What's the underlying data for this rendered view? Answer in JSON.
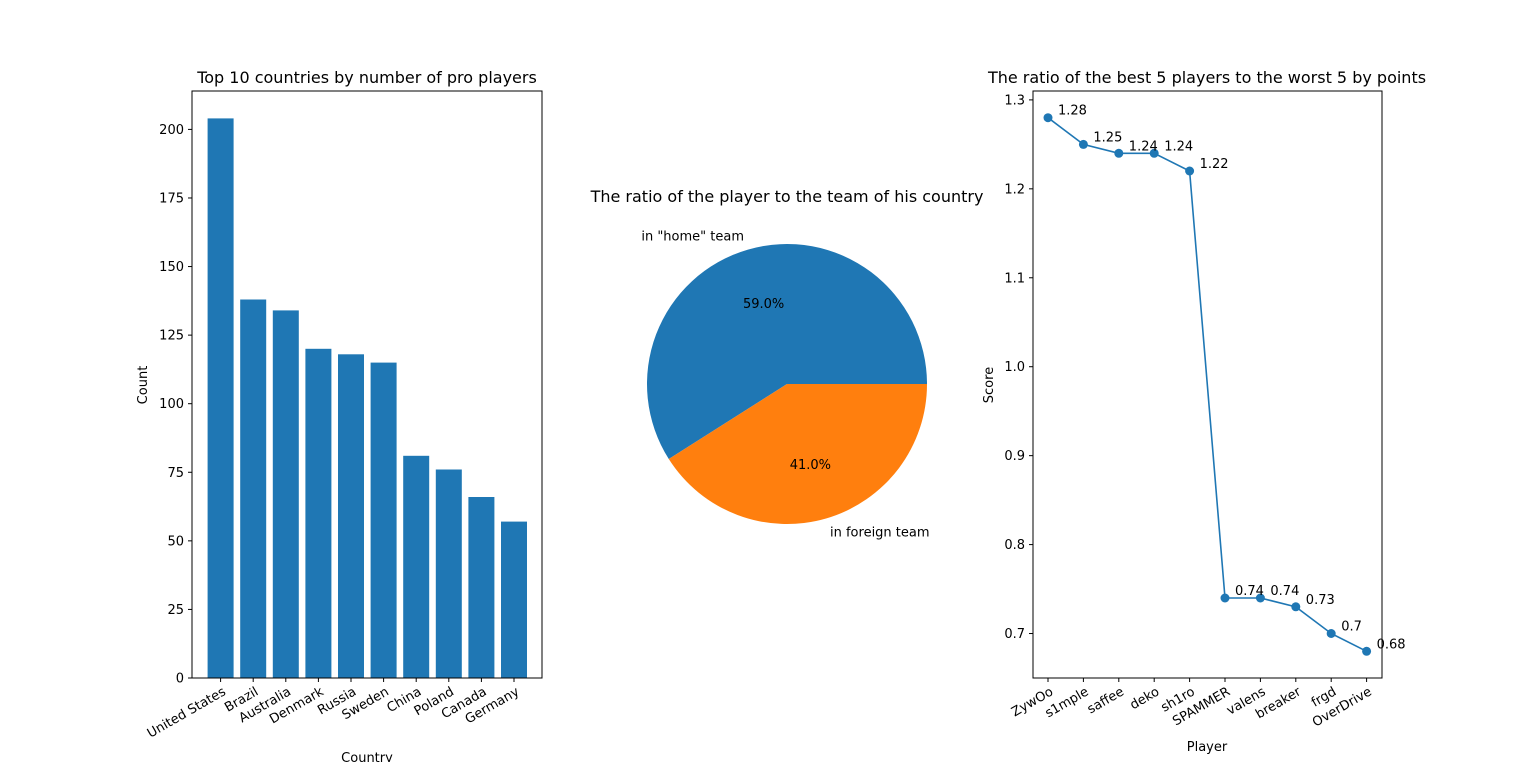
{
  "chart_data": [
    {
      "type": "bar",
      "title": "Top 10 countries by number of pro players",
      "xlabel": "Country",
      "ylabel": "Count",
      "categories": [
        "United States",
        "Brazil",
        "Australia",
        "Denmark",
        "Russia",
        "Sweden",
        "China",
        "Poland",
        "Canada",
        "Germany"
      ],
      "values": [
        204,
        138,
        134,
        120,
        118,
        115,
        81,
        76,
        66,
        57
      ],
      "ylim": [
        0,
        214
      ],
      "yticks": [
        0,
        25,
        50,
        75,
        100,
        125,
        150,
        175,
        200
      ],
      "color": "#1f77b4",
      "grid": false
    },
    {
      "type": "pie",
      "title": "The ratio of the player to the team of his country",
      "labels": [
        "in \"home\" team",
        "in foreign team"
      ],
      "values": [
        59.0,
        41.0
      ],
      "autopct": [
        "59.0%",
        "41.0%"
      ],
      "colors": [
        "#1f77b4",
        "#ff7f0e"
      ]
    },
    {
      "type": "line",
      "title": "The ratio of the best 5 players to the worst 5 by points",
      "xlabel": "Player",
      "ylabel": "Score",
      "categories": [
        "ZywOo",
        "s1mple",
        "saffee",
        "deko",
        "sh1ro",
        "SPAMMER",
        "valens",
        "breaker",
        "frgd",
        "OverDrive"
      ],
      "values": [
        1.28,
        1.25,
        1.24,
        1.24,
        1.22,
        0.74,
        0.74,
        0.73,
        0.7,
        0.68
      ],
      "annotations": [
        "1.28",
        "1.25",
        "1.24",
        "1.24",
        "1.22",
        "0.74",
        "0.74",
        "0.73",
        "0.7",
        "0.68"
      ],
      "ylim": [
        0.65,
        1.31
      ],
      "yticks": [
        "0.7",
        "0.8",
        "0.9",
        "1.0",
        "1.1",
        "1.2",
        "1.3"
      ],
      "color": "#1f77b4",
      "marker": "circle",
      "grid": false
    }
  ]
}
